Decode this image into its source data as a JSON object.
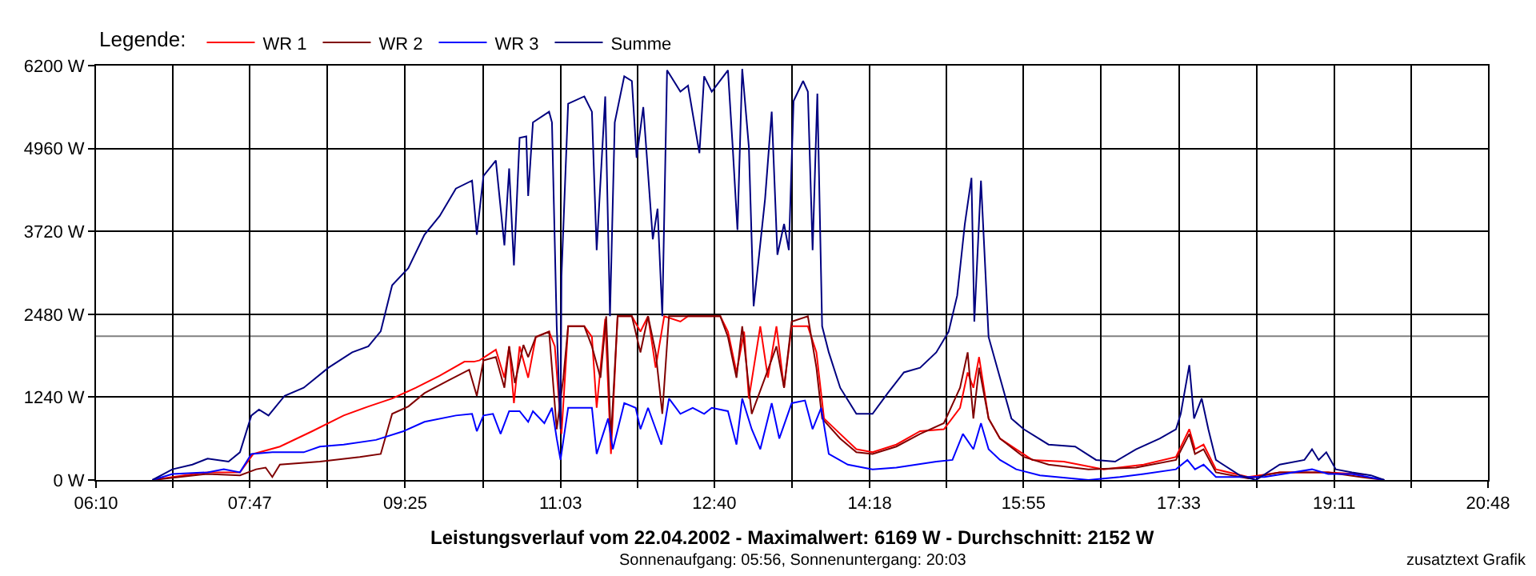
{
  "chart_data": {
    "type": "line",
    "title": "Leistungsverlauf vom 22.04.2002 - Maximalwert: 6169 W - Durchschnitt: 2152 W",
    "subtitle": "Sonnenaufgang: 05:56, Sonnenuntergang: 20:03",
    "legend_title": "Legende:",
    "annotations": [
      "zusatztext Grafik"
    ],
    "legend": "top left",
    "grid": true,
    "line_style": "solid",
    "marker": "none",
    "xlim": [
      6.1667,
      20.8
    ],
    "xticks": [
      {
        "value": 6.1667,
        "label": "06:10"
      },
      {
        "value": 6.975,
        "label": null
      },
      {
        "value": 7.7833,
        "label": "07:47"
      },
      {
        "value": 8.6,
        "label": null
      },
      {
        "value": 9.4167,
        "label": "09:25"
      },
      {
        "value": 10.2333,
        "label": null
      },
      {
        "value": 11.05,
        "label": "11:03"
      },
      {
        "value": 11.8583,
        "label": null
      },
      {
        "value": 12.6667,
        "label": "12:40"
      },
      {
        "value": 13.4833,
        "label": null
      },
      {
        "value": 14.3,
        "label": "14:18"
      },
      {
        "value": 15.1083,
        "label": null
      },
      {
        "value": 15.9167,
        "label": "15:55"
      },
      {
        "value": 16.7333,
        "label": null
      },
      {
        "value": 17.55,
        "label": "17:33"
      },
      {
        "value": 18.3667,
        "label": null
      },
      {
        "value": 19.1833,
        "label": "19:11"
      },
      {
        "value": 19.9917,
        "label": null
      },
      {
        "value": 20.8,
        "label": "20:48"
      }
    ],
    "ylim": [
      0,
      6200
    ],
    "yticks": [
      {
        "value": 0,
        "label": "0 W"
      },
      {
        "value": 1240,
        "label": "1240 W"
      },
      {
        "value": 2480,
        "label": "2480 W"
      },
      {
        "value": 3720,
        "label": "3720 W"
      },
      {
        "value": 4960,
        "label": "4960 W"
      },
      {
        "value": 6200,
        "label": "6200 W"
      }
    ],
    "ref_lines": [
      {
        "axis": "y",
        "value": 2152,
        "color": "#808080"
      }
    ],
    "series": [
      {
        "name": "WR 1",
        "color": "#ff0000",
        "x": [
          6.76,
          7.09,
          7.34,
          7.68,
          7.82,
          8.1,
          8.44,
          8.77,
          9.03,
          9.28,
          9.53,
          9.78,
          10.04,
          10.14,
          10.2,
          10.37,
          10.46,
          10.51,
          10.56,
          10.62,
          10.71,
          10.79,
          10.93,
          10.99,
          11.06,
          11.13,
          11.3,
          11.38,
          11.43,
          11.52,
          11.58,
          11.65,
          11.8,
          11.89,
          11.97,
          12.05,
          12.14,
          12.31,
          12.39,
          12.56,
          12.73,
          12.81,
          12.9,
          12.98,
          13.03,
          13.15,
          13.23,
          13.32,
          13.4,
          13.48,
          13.65,
          13.74,
          13.82,
          13.99,
          14.16,
          14.33,
          14.58,
          14.83,
          15.08,
          15.25,
          15.33,
          15.39,
          15.45,
          15.55,
          15.67,
          15.84,
          16.01,
          16.34,
          16.76,
          17.18,
          17.52,
          17.66,
          17.72,
          17.81,
          17.94,
          18.28,
          18.61,
          19.12,
          19.52
        ],
        "values": [
          0,
          70,
          115,
          115,
          390,
          500,
          730,
          965,
          1100,
          1220,
          1380,
          1560,
          1770,
          1770,
          1790,
          1950,
          1530,
          2000,
          1150,
          2000,
          1530,
          2140,
          2220,
          2000,
          690,
          2300,
          2300,
          2140,
          1080,
          2410,
          390,
          2450,
          2450,
          2220,
          2450,
          1680,
          2450,
          2370,
          2450,
          2450,
          2450,
          2220,
          1610,
          2220,
          1220,
          2300,
          1530,
          2300,
          1380,
          2300,
          2300,
          1910,
          920,
          690,
          460,
          415,
          530,
          730,
          760,
          1080,
          1610,
          1380,
          1840,
          920,
          620,
          460,
          300,
          275,
          160,
          230,
          345,
          760,
          460,
          530,
          160,
          45,
          115,
          115,
          80
        ]
      },
      {
        "name": "WR 2",
        "color": "#800000",
        "x": [
          6.76,
          7.34,
          7.68,
          7.85,
          7.95,
          8.02,
          8.1,
          8.52,
          8.94,
          9.16,
          9.28,
          9.45,
          9.62,
          9.87,
          10.09,
          10.17,
          10.24,
          10.37,
          10.46,
          10.51,
          10.57,
          10.66,
          10.71,
          10.79,
          10.93,
          11.01,
          11.08,
          11.13,
          11.3,
          11.38,
          11.47,
          11.53,
          11.58,
          11.65,
          11.8,
          11.89,
          11.97,
          12.05,
          12.12,
          12.19,
          12.39,
          12.56,
          12.73,
          12.81,
          12.9,
          12.96,
          13.06,
          13.2,
          13.32,
          13.4,
          13.48,
          13.65,
          13.74,
          13.8,
          13.99,
          14.16,
          14.33,
          14.58,
          14.83,
          15.08,
          15.25,
          15.33,
          15.39,
          15.45,
          15.55,
          15.67,
          15.92,
          16.18,
          16.6,
          17.1,
          17.52,
          17.66,
          17.72,
          17.81,
          17.94,
          18.28,
          18.61,
          19.12,
          19.46,
          19.71
        ],
        "values": [
          0,
          90,
          70,
          160,
          185,
          45,
          230,
          275,
          345,
          390,
          990,
          1100,
          1300,
          1490,
          1650,
          1260,
          1790,
          1840,
          1380,
          2000,
          1450,
          2020,
          1840,
          2140,
          2220,
          760,
          1530,
          2300,
          2300,
          2000,
          1530,
          2450,
          620,
          2450,
          2450,
          1910,
          2450,
          1910,
          990,
          2450,
          2450,
          2450,
          2450,
          2140,
          1530,
          2300,
          990,
          1530,
          2000,
          1380,
          2370,
          2450,
          1680,
          920,
          620,
          415,
          390,
          500,
          690,
          850,
          1380,
          1910,
          920,
          1680,
          920,
          620,
          345,
          230,
          160,
          185,
          300,
          690,
          390,
          460,
          115,
          25,
          115,
          115,
          45,
          0
        ]
      },
      {
        "name": "WR 3",
        "color": "#0000ff",
        "x": [
          6.76,
          6.97,
          7.34,
          7.51,
          7.68,
          7.8,
          8.02,
          8.35,
          8.52,
          8.77,
          9.11,
          9.4,
          9.62,
          9.95,
          10.12,
          10.17,
          10.24,
          10.34,
          10.42,
          10.51,
          10.62,
          10.71,
          10.76,
          10.88,
          10.96,
          11.01,
          11.05,
          11.13,
          11.38,
          11.43,
          11.55,
          11.6,
          11.72,
          11.84,
          11.89,
          11.97,
          12.11,
          12.19,
          12.31,
          12.44,
          12.56,
          12.64,
          12.81,
          12.9,
          12.96,
          13.06,
          13.15,
          13.27,
          13.35,
          13.48,
          13.62,
          13.7,
          13.79,
          13.87,
          14.07,
          14.33,
          14.58,
          15.0,
          15.17,
          15.28,
          15.39,
          15.47,
          15.55,
          15.67,
          15.84,
          16.09,
          16.6,
          16.93,
          17.18,
          17.52,
          17.64,
          17.72,
          17.81,
          17.94,
          18.45,
          18.95,
          19.12,
          19.37,
          19.71
        ],
        "values": [
          0,
          90,
          115,
          160,
          115,
          390,
          415,
          415,
          500,
          530,
          600,
          730,
          870,
          965,
          990,
          730,
          965,
          990,
          690,
          1030,
          1030,
          870,
          1030,
          850,
          1080,
          620,
          300,
          1080,
          1080,
          390,
          920,
          460,
          1150,
          1080,
          760,
          1080,
          530,
          1220,
          990,
          1080,
          990,
          1080,
          1030,
          530,
          1220,
          760,
          460,
          1150,
          620,
          1150,
          1190,
          760,
          1080,
          390,
          230,
          160,
          185,
          275,
          300,
          690,
          460,
          850,
          460,
          300,
          160,
          70,
          0,
          45,
          90,
          160,
          300,
          160,
          230,
          45,
          45,
          160,
          90,
          90,
          0
        ]
      },
      {
        "name": "Summe",
        "color": "#000080",
        "x": [
          6.76,
          6.97,
          7.18,
          7.34,
          7.56,
          7.68,
          7.8,
          7.88,
          7.98,
          8.15,
          8.35,
          8.61,
          8.86,
          9.03,
          9.16,
          9.28,
          9.45,
          9.62,
          9.78,
          9.95,
          10.12,
          10.17,
          10.24,
          10.37,
          10.46,
          10.51,
          10.56,
          10.62,
          10.69,
          10.71,
          10.76,
          10.93,
          10.96,
          11.01,
          11.05,
          11.06,
          11.13,
          11.3,
          11.38,
          11.43,
          11.52,
          11.57,
          11.62,
          11.72,
          11.8,
          11.85,
          11.92,
          12.02,
          12.07,
          12.12,
          12.17,
          12.31,
          12.39,
          12.51,
          12.56,
          12.64,
          12.81,
          12.86,
          12.91,
          12.96,
          13.03,
          13.08,
          13.2,
          13.27,
          13.33,
          13.4,
          13.45,
          13.5,
          13.6,
          13.65,
          13.7,
          13.75,
          13.8,
          13.87,
          13.99,
          14.16,
          14.33,
          14.49,
          14.66,
          14.83,
          15.0,
          15.13,
          15.22,
          15.3,
          15.37,
          15.4,
          15.47,
          15.55,
          15.67,
          15.79,
          15.92,
          16.18,
          16.46,
          16.68,
          16.88,
          17.1,
          17.35,
          17.52,
          17.57,
          17.66,
          17.71,
          17.79,
          17.86,
          17.94,
          18.19,
          18.36,
          18.61,
          18.87,
          18.95,
          19.02,
          19.1,
          19.2,
          19.37,
          19.57,
          19.71
        ],
        "values": [
          0,
          160,
          230,
          320,
          275,
          415,
          965,
          1055,
          965,
          1260,
          1380,
          1680,
          1910,
          2000,
          2225,
          2915,
          3170,
          3670,
          3950,
          4360,
          4480,
          3670,
          4550,
          4780,
          3510,
          4660,
          3210,
          5120,
          5140,
          4250,
          5350,
          5510,
          5350,
          2300,
          760,
          3050,
          5630,
          5740,
          5510,
          3440,
          5740,
          2450,
          5350,
          6040,
          5970,
          4820,
          5580,
          3600,
          4060,
          2450,
          6130,
          5810,
          5900,
          4890,
          6040,
          5810,
          6130,
          4980,
          3740,
          6150,
          4980,
          2600,
          4200,
          5510,
          3370,
          3830,
          3440,
          5670,
          5970,
          5810,
          3440,
          5780,
          2300,
          1910,
          1380,
          990,
          990,
          1300,
          1610,
          1680,
          1910,
          2220,
          2760,
          3830,
          4520,
          2370,
          4480,
          2140,
          1530,
          920,
          760,
          530,
          500,
          300,
          275,
          460,
          620,
          760,
          990,
          1720,
          920,
          1220,
          760,
          300,
          70,
          0,
          230,
          300,
          460,
          300,
          415,
          160,
          115,
          70,
          0
        ]
      }
    ]
  }
}
